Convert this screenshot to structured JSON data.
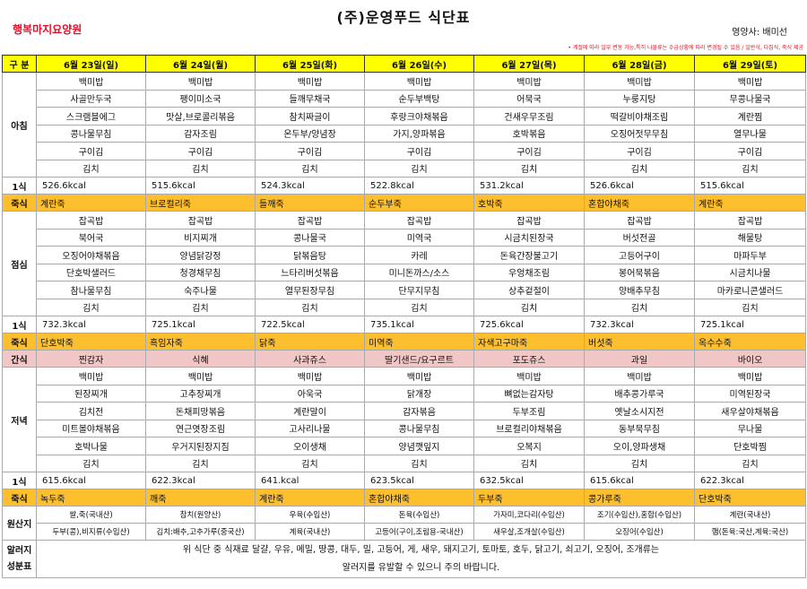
{
  "header": {
    "title": "(주)운영푸드 식단표",
    "facility": "행복마지요양원",
    "nutritionist": "영양사: 배미선",
    "note": "• 계절에 따라 일부 변동 가능,특히 나물류는 수급상황에 따라 변경될 수 있음 / 일반식, 다집식, 죽식 제공"
  },
  "columns": {
    "label": "구 분",
    "days": [
      "6월 23일(일)",
      "6월 24일(월)",
      "6월 25일(화)",
      "6월 26일(수)",
      "6월 27일(목)",
      "6월 28일(금)",
      "6월 29일(토)"
    ]
  },
  "breakfast": {
    "label": "아침",
    "rows": [
      [
        "백미밥",
        "백미밥",
        "백미밥",
        "백미밥",
        "백미밥",
        "백미밥",
        "백미밥"
      ],
      [
        "사골만두국",
        "팽이미소국",
        "들깨무채국",
        "순두부백탕",
        "어묵국",
        "누룽지탕",
        "무콩나물국"
      ],
      [
        "스크램블에그",
        "맛살,브로콜리볶음",
        "참치짜글이",
        "후랑크야채볶음",
        "건새우무조림",
        "떡갈비야채조림",
        "계란찜"
      ],
      [
        "콩나물무침",
        "감자조림",
        "온두부/양념장",
        "가지,양파볶음",
        "호박볶음",
        "오징어젓무무침",
        "열무나물"
      ],
      [
        "구이김",
        "구이김",
        "구이김",
        "구이김",
        "구이김",
        "구이김",
        "구이김"
      ],
      [
        "김치",
        "김치",
        "김치",
        "김치",
        "김치",
        "김치",
        "김치"
      ]
    ],
    "kcal_label": "1식",
    "kcal": [
      "526.6kcal",
      "515.6kcal",
      "524.3kcal",
      "522.8kcal",
      "531.2kcal",
      "526.6kcal",
      "515.6kcal"
    ],
    "porridge_label": "죽식",
    "porridge": [
      "계란죽",
      "브로컬리죽",
      "들깨죽",
      "순두부죽",
      "호박죽",
      "혼합야채죽",
      "계란죽"
    ]
  },
  "lunch": {
    "label": "점심",
    "rows": [
      [
        "잡곡밥",
        "잡곡밥",
        "잡곡밥",
        "잡곡밥",
        "잡곡밥",
        "잡곡밥",
        "잡곡밥"
      ],
      [
        "북어국",
        "비지찌개",
        "콩나물국",
        "미역국",
        "시금치된장국",
        "버섯전골",
        "해물탕"
      ],
      [
        "오징어야채볶음",
        "양념닭강정",
        "닭볶음탕",
        "카레",
        "돈육간장불고기",
        "고등어구이",
        "마파두부"
      ],
      [
        "단호박샐러드",
        "청경채무침",
        "느타리버섯볶음",
        "미니돈까스/소스",
        "우엉채조림",
        "봉어묵볶음",
        "시금치나물"
      ],
      [
        "참나물무침",
        "숙주나물",
        "열무된장무침",
        "단무지무침",
        "상추겉절이",
        "양배추무침",
        "마카로니콘샐러드"
      ],
      [
        "김치",
        "김치",
        "김치",
        "김치",
        "김치",
        "김치",
        "김치"
      ]
    ],
    "kcal_label": "1식",
    "kcal": [
      "732.3kcal",
      "725.1kcal",
      "722.5kcal",
      "735.1kcal",
      "725.6kcal",
      "732.3kcal",
      "725.1kcal"
    ],
    "porridge_label": "죽식",
    "porridge": [
      "단호박죽",
      "흑임자죽",
      "닭죽",
      "미역죽",
      "자색고구마죽",
      "버섯죽",
      "옥수수죽"
    ]
  },
  "snack": {
    "label": "간식",
    "items": [
      "찐감자",
      "식혜",
      "사과쥬스",
      "딸기샌드/요구르트",
      "포도쥬스",
      "과일",
      "바이오"
    ]
  },
  "dinner": {
    "label": "저녁",
    "rows": [
      [
        "백미밥",
        "백미밥",
        "백미밥",
        "백미밥",
        "백미밥",
        "백미밥",
        "백미밥"
      ],
      [
        "된장찌개",
        "고추장찌개",
        "아욱국",
        "닭개장",
        "뼈없는감자탕",
        "배추콩가루국",
        "미역된장국"
      ],
      [
        "김치전",
        "돈채피망볶음",
        "계란말이",
        "감자볶음",
        "두부조림",
        "옛날소시지전",
        "새우살야채볶음"
      ],
      [
        "미트볼야채볶음",
        "연근엿장조림",
        "고사리나물",
        "콩나물무침",
        "브로컬리야채볶음",
        "동부묵무침",
        "무나물"
      ],
      [
        "호박나물",
        "우거지된장지짐",
        "오이생채",
        "양념깻잎지",
        "오복지",
        "오이,양파생채",
        "단호박찜"
      ],
      [
        "김치",
        "김치",
        "김치",
        "김치",
        "김치",
        "김치",
        "김치"
      ]
    ],
    "kcal_label": "1식",
    "kcal": [
      "615.6kcal",
      "622.3kcal",
      "641.kcal",
      "623.5kcal",
      "632.5kcal",
      "615.6kcal",
      "622.3kcal"
    ],
    "porridge_label": "죽식",
    "porridge": [
      "녹두죽",
      "깨죽",
      "계란죽",
      "혼합야채죽",
      "두부죽",
      "콩가루죽",
      "단호박죽"
    ]
  },
  "origin": {
    "label": "원산지",
    "row1": [
      "쌀,죽(국내산)",
      "참치(원양산)",
      "우육(수입산)",
      "돈육(수입산)",
      "가자미,코다리(수입산)",
      "조기(수입산),홍합(수입산)",
      "계란(국내산)"
    ],
    "row2": [
      "두부(콩),비지류(수입산)",
      "김치:배추,고추가루(중국산)",
      "계육(국내산)",
      "고등어(구이,조림용-국내산)",
      "새우살,조개살(수입산)",
      "오징어(수입산)",
      "햄(돈육:국산,계육:국산)"
    ]
  },
  "allergy": {
    "label_line1": "알러지",
    "label_line2": "성분표",
    "line1": "위 식단 중 식재료 달걀, 우유, 메밀, 땅콩, 대두, 밀, 고등어, 게, 새우, 돼지고기, 토마토, 호두, 닭고기, 쇠고기, 오징어, 조개류는",
    "line2": "알러지를 유발할 수 있으니 주의 바랍니다."
  }
}
